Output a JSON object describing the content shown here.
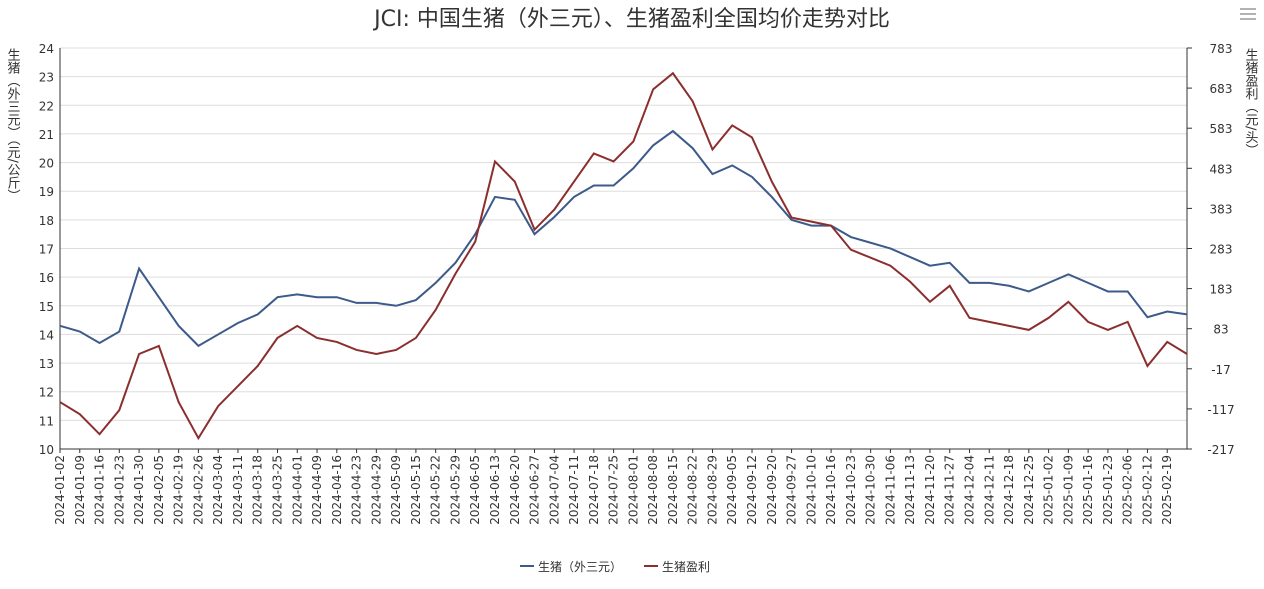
{
  "chart_data": {
    "type": "line",
    "title": "JCI: 中国生猪（外三元）、生猪盈利全国均价走势对比",
    "y_label": "生猪（外三元）（元/公斤）",
    "y2_label": "生猪盈利（元/头）",
    "categories": [
      "2024-01-02",
      "2024-01-09",
      "2024-01-16",
      "2024-01-23",
      "2024-01-30",
      "2024-02-05",
      "2024-02-19",
      "2024-02-26",
      "2024-03-04",
      "2024-03-11",
      "2024-03-18",
      "2024-03-25",
      "2024-04-01",
      "2024-04-09",
      "2024-04-16",
      "2024-04-23",
      "2024-04-29",
      "2024-05-09",
      "2024-05-15",
      "2024-05-22",
      "2024-05-29",
      "2024-06-05",
      "2024-06-13",
      "2024-06-20",
      "2024-06-27",
      "2024-07-04",
      "2024-07-11",
      "2024-07-18",
      "2024-07-25",
      "2024-08-01",
      "2024-08-08",
      "2024-08-15",
      "2024-08-22",
      "2024-08-29",
      "2024-09-05",
      "2024-09-12",
      "2024-09-20",
      "2024-09-27",
      "2024-10-10",
      "2024-10-16",
      "2024-10-23",
      "2024-10-30",
      "2024-11-06",
      "2024-11-13",
      "2024-11-20",
      "2024-11-27",
      "2024-12-04",
      "2024-12-11",
      "2024-12-18",
      "2024-12-25",
      "2025-01-02",
      "2025-01-09",
      "2025-01-16",
      "2025-01-23",
      "2025-02-06",
      "2025-02-12",
      "2025-02-19",
      null
    ],
    "series": [
      {
        "name": "生猪（外三元）",
        "color": "#3c5a8a",
        "values": [
          14.3,
          14.1,
          13.7,
          14.1,
          16.3,
          15.3,
          14.3,
          13.6,
          14.0,
          14.4,
          14.7,
          15.3,
          15.4,
          15.3,
          15.3,
          15.1,
          15.1,
          15.0,
          15.2,
          15.8,
          16.5,
          17.5,
          18.8,
          18.7,
          17.5,
          18.1,
          18.8,
          19.2,
          19.2,
          19.8,
          20.6,
          21.1,
          20.5,
          19.6,
          19.9,
          19.5,
          18.8,
          18.0,
          17.8,
          17.8,
          17.4,
          17.2,
          17.0,
          16.7,
          16.4,
          16.5,
          15.8,
          15.8,
          15.7,
          15.5,
          15.8,
          16.1,
          15.8,
          15.5,
          15.5,
          14.6,
          14.8,
          14.7
        ]
      },
      {
        "name": "生猪盈利",
        "color": "#8b2e2e",
        "axis": "y2",
        "values": [
          -100,
          -130,
          -180,
          -120,
          20,
          40,
          -100,
          -190,
          -110,
          -60,
          -10,
          60,
          90,
          60,
          50,
          30,
          20,
          30,
          60,
          130,
          220,
          300,
          500,
          450,
          330,
          380,
          450,
          520,
          500,
          550,
          680,
          720,
          650,
          530,
          590,
          560,
          450,
          360,
          350,
          340,
          280,
          260,
          240,
          200,
          150,
          190,
          110,
          100,
          90,
          80,
          110,
          150,
          100,
          80,
          100,
          -10,
          50,
          20
        ]
      }
    ],
    "ylim": [
      10,
      24
    ],
    "yticks": [
      10,
      11,
      12,
      13,
      14,
      15,
      16,
      17,
      18,
      19,
      20,
      21,
      22,
      23,
      24
    ],
    "y2lim": [
      -217,
      783
    ],
    "y2ticks": [
      -217,
      -117,
      -17,
      83,
      183,
      283,
      383,
      483,
      583,
      683,
      783
    ],
    "grid": true,
    "legend": "bottom"
  }
}
